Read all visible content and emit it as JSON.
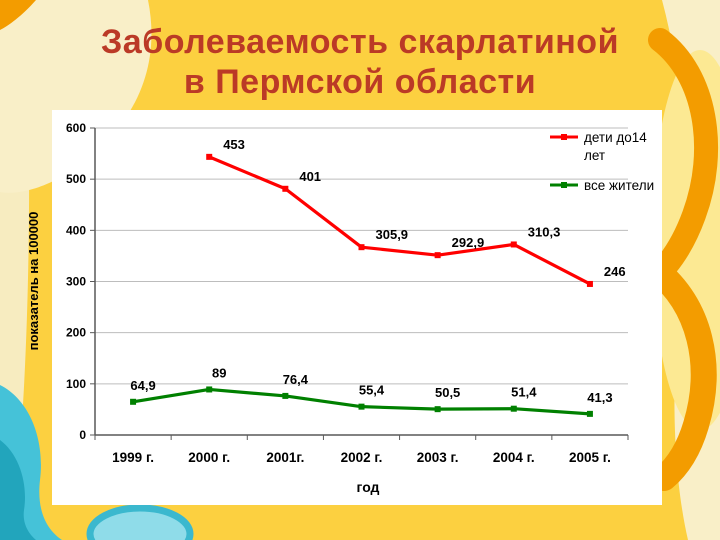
{
  "slide": {
    "title_line1": "Заболеваемость скарлатиной",
    "title_line2": "в Пермской области",
    "title_color": "#bb3a26",
    "background_color": "#fcd040"
  },
  "chart_data": {
    "type": "line",
    "title": "Заболеваемость скарлатиной в Пермской области",
    "categories": [
      "1999 г.",
      "2000 г.",
      "2001г.",
      "2002 г.",
      "2003 г.",
      "2004 г.",
      "2005 г."
    ],
    "series": [
      {
        "name": "дети до14 лет",
        "name_lines": [
          "дети до14",
          "лет"
        ],
        "color": "#ff0000",
        "axis": "secondary",
        "values": [
          null,
          453,
          401,
          305.9,
          292.9,
          310.3,
          246
        ],
        "labels": [
          "",
          "453",
          "401",
          "305,9",
          "292,9",
          "310,3",
          "246"
        ]
      },
      {
        "name": "все жители",
        "name_lines": [
          "все жители"
        ],
        "color": "#008000",
        "axis": "primary",
        "values": [
          64.9,
          89,
          76.4,
          55.4,
          50.5,
          51.4,
          41.3
        ],
        "labels": [
          "64,9",
          "89",
          "76,4",
          "55,4",
          "50,5",
          "51,4",
          "41,3"
        ]
      }
    ],
    "xlabel": "год",
    "ylabel": "показатель на 100000",
    "ylim": [
      0,
      600
    ],
    "y2lim": [
      0,
      500
    ],
    "ytick_step": 100,
    "yticks": [
      0,
      100,
      200,
      300,
      400,
      500,
      600
    ],
    "grid": true,
    "legend_position": "top-right"
  }
}
